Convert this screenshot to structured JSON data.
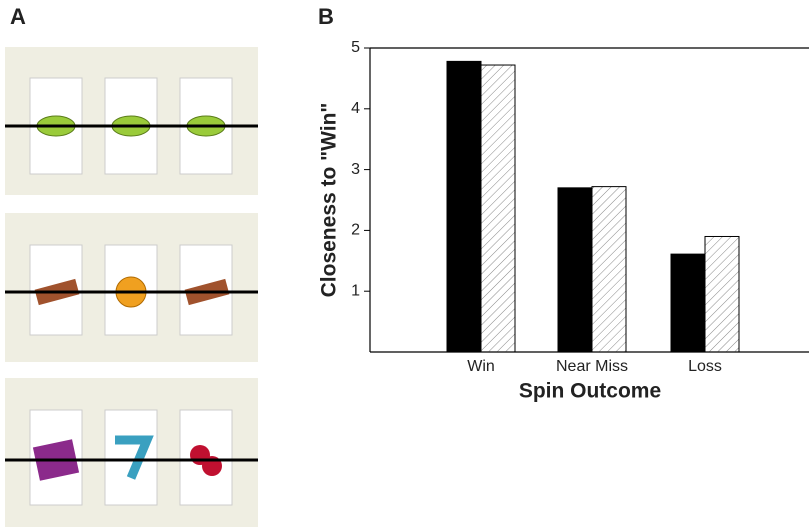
{
  "panel_labels": [
    "A",
    "B"
  ],
  "chart_data": {
    "type": "bar",
    "y_label": "Closeness to \"Win\"",
    "x_label": "Spin Outcome",
    "categories": [
      "Win",
      "Near Miss",
      "Loss"
    ],
    "series": [
      {
        "color": "#000000",
        "values": [
          4.78,
          2.7,
          1.61
        ]
      },
      {
        "color": "#ffffff",
        "hatch": true,
        "values": [
          4.72,
          2.72,
          1.9
        ]
      }
    ],
    "ylim": [
      0,
      5
    ],
    "yticks": [
      1,
      2,
      3,
      4,
      5
    ]
  }
}
